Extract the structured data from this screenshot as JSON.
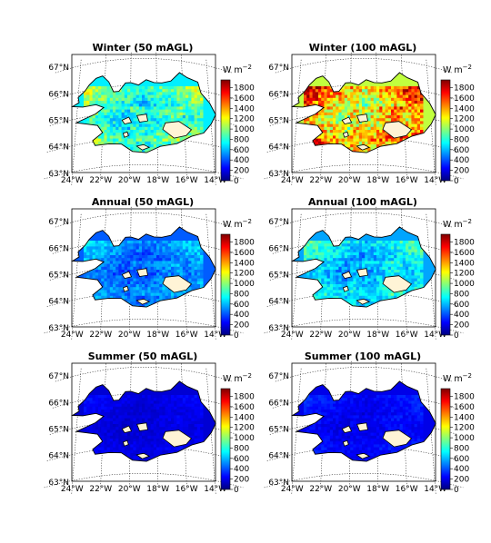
{
  "figure": {
    "colorbar_unit": "W m",
    "colorbar_unit_sup": "−2",
    "colorbar_ticks": [
      0,
      200,
      400,
      600,
      800,
      1000,
      1200,
      1400,
      1600,
      1800
    ],
    "colorbar_range": [
      0,
      1950
    ],
    "colormap": [
      "#00007f",
      "#0000ff",
      "#007fff",
      "#00ffff",
      "#7fff7f",
      "#ffff00",
      "#ff7f00",
      "#ff0000",
      "#7f0000"
    ],
    "lon_labels": [
      "24°W",
      "22°W",
      "20°W",
      "18°W",
      "16°W",
      "14°W"
    ],
    "lat_labels": [
      "67°N",
      "66°N",
      "65°N",
      "64°N",
      "63°N"
    ],
    "coast_color": "#000000",
    "glacier_color": "#fff4d6",
    "panels": [
      {
        "title": "Winter (50 mAGL)",
        "typical_power_density": 700
      },
      {
        "title": "Winter (100 mAGL)",
        "typical_power_density": 1100
      },
      {
        "title": "Annual (50 mAGL)",
        "typical_power_density": 420
      },
      {
        "title": "Annual (100 mAGL)",
        "typical_power_density": 560
      },
      {
        "title": "Summer (50 mAGL)",
        "typical_power_density": 160
      },
      {
        "title": "Summer (100 mAGL)",
        "typical_power_density": 200
      }
    ]
  }
}
